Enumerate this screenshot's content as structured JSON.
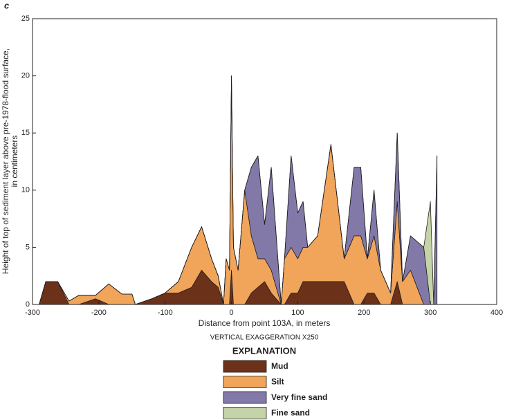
{
  "chart_data": {
    "type": "stacked-area",
    "title": "c",
    "ylabel": [
      "Height of top of sediment layer above pre-1978-flood surface,",
      "in centimeters"
    ],
    "xlabel": "Distance from point 103A, in meters",
    "note": "VERTICAL EXAGGERATION X250",
    "legend_title": "EXPLANATION",
    "xlim": [
      -300,
      400
    ],
    "xticks": [
      -300,
      -200,
      -100,
      0,
      100,
      200,
      300,
      400
    ],
    "ylim": [
      0,
      25
    ],
    "yticks": [
      0,
      5,
      10,
      15,
      20,
      25
    ],
    "x": [
      -290,
      -280,
      -262,
      -245,
      -230,
      -205,
      -185,
      -165,
      -150,
      -145,
      -120,
      -100,
      -80,
      -60,
      -45,
      -30,
      -20,
      -12,
      -8,
      -3,
      0,
      3,
      10,
      20,
      30,
      40,
      50,
      60,
      75,
      80,
      90,
      100,
      108,
      115,
      130,
      150,
      170,
      185,
      195,
      205,
      215,
      225,
      240,
      250,
      258,
      270,
      290,
      300,
      305,
      310
    ],
    "series": [
      {
        "name": "Mud",
        "color": "#6b3219",
        "values": [
          0,
          2,
          2,
          0,
          0,
          0.5,
          0,
          0,
          0,
          0,
          0.5,
          1,
          1,
          1.5,
          3,
          2,
          1.5,
          0,
          0,
          0,
          3,
          0,
          0,
          0,
          1,
          1.5,
          2,
          1,
          0,
          0,
          1,
          1,
          2,
          2,
          2,
          2,
          2,
          0,
          0,
          1,
          1,
          0,
          0,
          2,
          0,
          0,
          0,
          0,
          0,
          0
        ]
      },
      {
        "name": "Silt",
        "color": "#f0a55b",
        "values": [
          0,
          0,
          0,
          0.3,
          0.8,
          0.3,
          1.8,
          0.9,
          0.9,
          0,
          0,
          0,
          1,
          3.5,
          3.8,
          2,
          1,
          0,
          4,
          3,
          17,
          5,
          3,
          10,
          5,
          2.5,
          2,
          2,
          0,
          4,
          4,
          3,
          3,
          3,
          4,
          12,
          2,
          6,
          6,
          3,
          5,
          3,
          1,
          7,
          2,
          3,
          0,
          0,
          0,
          0
        ]
      },
      {
        "name": "Very fine sand",
        "color": "#8279a8",
        "values": [
          0,
          0,
          0,
          0,
          0,
          0,
          0,
          0,
          0,
          0,
          0,
          0,
          0,
          0,
          0,
          0,
          0,
          0,
          0,
          0,
          0,
          0,
          0,
          0,
          6,
          9,
          3,
          9,
          0,
          0,
          8,
          4,
          4,
          0,
          0,
          0,
          0,
          6,
          6,
          0,
          4,
          0,
          0,
          6,
          0,
          3,
          5,
          0,
          0,
          13
        ]
      },
      {
        "name": "Fine sand",
        "color": "#c5d4a8",
        "values": [
          0,
          0,
          0,
          0,
          0,
          0,
          0,
          0,
          0,
          0,
          0,
          0,
          0,
          0,
          0,
          0,
          0,
          0,
          0,
          0,
          0,
          0,
          0,
          0,
          0,
          0,
          0,
          0,
          0,
          0,
          0,
          0,
          0,
          0,
          0,
          0,
          0,
          0,
          0,
          0,
          0,
          0,
          0,
          0,
          0,
          0,
          0,
          9,
          0,
          0
        ]
      }
    ]
  }
}
